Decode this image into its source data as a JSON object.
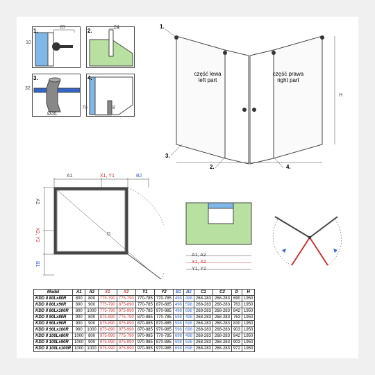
{
  "detail_panels": {
    "p1": {
      "num": "1.",
      "dims": [
        "20",
        "10"
      ],
      "colors": {
        "glass": "#7fb8e8",
        "frame": "#333"
      }
    },
    "p2": {
      "num": "2.",
      "dims": [
        "24"
      ],
      "colors": {
        "floor": "#b8e0a0"
      }
    },
    "p3": {
      "num": "3.",
      "dims": [
        "32",
        "38",
        "Ø38"
      ],
      "colors": {
        "rod": "#888"
      }
    },
    "p4": {
      "num": "4.",
      "dims": [
        "70",
        "8"
      ],
      "colors": {
        "glass": "#7fb8e8",
        "seal": "#888"
      }
    }
  },
  "iso": {
    "left": "część lewa\nleft part",
    "right": "część prawa\nright part",
    "dims": [
      "H",
      "D"
    ],
    "num_labels": [
      "1.",
      "2.",
      "3.",
      "4."
    ]
  },
  "plan": {
    "dims": [
      "A1",
      "X1, Y1",
      "B2",
      "A2",
      "X2, Y2",
      "B1",
      "D",
      "A1, A2",
      "X1, X2",
      "Y1, Y2"
    ]
  },
  "table": {
    "columns": [
      "Model",
      "A1",
      "A2",
      "X1",
      "X2",
      "Y1",
      "Y2",
      "B1",
      "B2",
      "C1",
      "C2",
      "D",
      "H"
    ],
    "col_classes": [
      "",
      "",
      "",
      "rx",
      "rx",
      "",
      "",
      "bx",
      "bx",
      "",
      "",
      "",
      ""
    ],
    "rows": [
      [
        "KDD II 80Lx80R",
        "800",
        "800",
        "775-790",
        "775-790",
        "770-785",
        "770-785",
        "498",
        "498",
        "268-283",
        "268-283",
        "690",
        "1950"
      ],
      [
        "KDD II 80Lx90R",
        "800",
        "900",
        "775-790",
        "875-890",
        "770-785",
        "870-885",
        "498",
        "598",
        "268-283",
        "268-283",
        "763",
        "1950"
      ],
      [
        "KDD II 80Lx100R",
        "800",
        "1000",
        "775-790",
        "975-990",
        "770-785",
        "970-985",
        "498",
        "698",
        "268-283",
        "268-283",
        "842",
        "1950"
      ],
      [
        "KDD II 90Lx80R",
        "900",
        "800",
        "875-890",
        "775-790",
        "870-885",
        "770-785",
        "598",
        "498",
        "268-283",
        "268-283",
        "763",
        "1950"
      ],
      [
        "KDD II 90Lx90R",
        "900",
        "900",
        "875-890",
        "875-890",
        "870-885",
        "870-885",
        "598",
        "598",
        "268-283",
        "268-283",
        "830",
        "1950"
      ],
      [
        "KDD II 90Lx100R",
        "900",
        "1000",
        "875-890",
        "975-990",
        "870-885",
        "970-985",
        "598",
        "698",
        "268-283",
        "268-283",
        "903",
        "1950"
      ],
      [
        "KDD II 100Lx80R",
        "1000",
        "800",
        "975-990",
        "775-790",
        "970-985",
        "770-785",
        "698",
        "498",
        "268-283",
        "268-283",
        "842",
        "1950"
      ],
      [
        "KDD II 100Lx90R",
        "1000",
        "900",
        "975-990",
        "875-890",
        "970-985",
        "870-885",
        "698",
        "598",
        "268-283",
        "268-283",
        "903",
        "1950"
      ],
      [
        "KDD II 100Lx100R",
        "1000",
        "1000",
        "975-990",
        "975-990",
        "970-985",
        "970-985",
        "698",
        "698",
        "268-283",
        "268-283",
        "972",
        "1950"
      ]
    ]
  },
  "colors": {
    "glass": "#7fb8e8",
    "floor": "#b8e0a0",
    "line": "#444",
    "red": "#c33",
    "blue": "#36c"
  }
}
